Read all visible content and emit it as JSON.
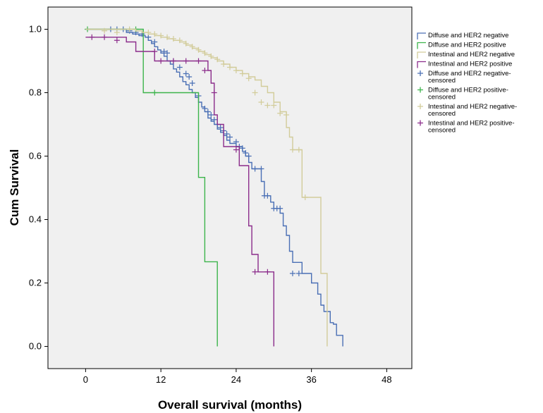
{
  "chart_data": {
    "type": "line",
    "title": "",
    "xlabel": "Overall survival (months)",
    "ylabel": "Cum Survival",
    "xlim": [
      -6,
      52
    ],
    "ylim": [
      -0.07,
      1.07
    ],
    "x_ticks": [
      0,
      12,
      24,
      36,
      48
    ],
    "y_ticks": [
      0.0,
      0.2,
      0.4,
      0.6,
      0.8,
      1.0
    ],
    "grid": false,
    "legend_position": "right",
    "background_color": "#f0f0f0",
    "series": [
      {
        "name": "Diffuse and HER2 negative",
        "color": "#4a6fb5",
        "steps": [
          [
            0,
            1.0
          ],
          [
            6.5,
            0.99
          ],
          [
            7.5,
            0.985
          ],
          [
            8.5,
            0.98
          ],
          [
            9.5,
            0.975
          ],
          [
            10,
            0.965
          ],
          [
            10.5,
            0.955
          ],
          [
            11,
            0.945
          ],
          [
            11.5,
            0.935
          ],
          [
            12,
            0.925
          ],
          [
            12.5,
            0.915
          ],
          [
            13,
            0.9
          ],
          [
            13.5,
            0.89
          ],
          [
            14,
            0.875
          ],
          [
            14.5,
            0.865
          ],
          [
            15,
            0.85
          ],
          [
            15.5,
            0.835
          ],
          [
            16,
            0.825
          ],
          [
            16.5,
            0.81
          ],
          [
            17,
            0.8
          ],
          [
            17.5,
            0.785
          ],
          [
            18,
            0.77
          ],
          [
            18.5,
            0.755
          ],
          [
            19,
            0.74
          ],
          [
            19.5,
            0.72
          ],
          [
            20,
            0.71
          ],
          [
            20.5,
            0.7
          ],
          [
            21,
            0.685
          ],
          [
            21.5,
            0.675
          ],
          [
            22,
            0.665
          ],
          [
            22.5,
            0.65
          ],
          [
            23,
            0.64
          ],
          [
            24,
            0.63
          ],
          [
            25,
            0.615
          ],
          [
            25.5,
            0.6
          ],
          [
            26,
            0.58
          ],
          [
            26.5,
            0.56
          ],
          [
            28,
            0.52
          ],
          [
            28.5,
            0.475
          ],
          [
            29.5,
            0.455
          ],
          [
            30,
            0.435
          ],
          [
            31,
            0.42
          ],
          [
            31.5,
            0.38
          ],
          [
            32,
            0.35
          ],
          [
            32.5,
            0.3
          ],
          [
            33,
            0.265
          ],
          [
            34.5,
            0.23
          ],
          [
            36,
            0.2
          ],
          [
            37,
            0.165
          ],
          [
            37.5,
            0.13
          ],
          [
            38,
            0.11
          ],
          [
            39,
            0.075
          ],
          [
            39.5,
            0.07
          ],
          [
            40,
            0.035
          ],
          [
            41,
            0.0
          ]
        ],
        "censor": [
          [
            4,
            1.0
          ],
          [
            5,
            1.0
          ],
          [
            6,
            1.0
          ],
          [
            7,
            0.995
          ],
          [
            8,
            0.99
          ],
          [
            9,
            0.985
          ],
          [
            10,
            0.975
          ],
          [
            11,
            0.96
          ],
          [
            12.5,
            0.93
          ],
          [
            13,
            0.925
          ],
          [
            14,
            0.9
          ],
          [
            15,
            0.88
          ],
          [
            16,
            0.86
          ],
          [
            16.5,
            0.85
          ],
          [
            17,
            0.83
          ],
          [
            18,
            0.79
          ],
          [
            19,
            0.75
          ],
          [
            19.5,
            0.74
          ],
          [
            20,
            0.73
          ],
          [
            20.5,
            0.715
          ],
          [
            21,
            0.7
          ],
          [
            21.5,
            0.69
          ],
          [
            22,
            0.68
          ],
          [
            22.5,
            0.67
          ],
          [
            23,
            0.66
          ],
          [
            24,
            0.645
          ],
          [
            24.5,
            0.63
          ],
          [
            25,
            0.625
          ],
          [
            25.5,
            0.61
          ],
          [
            26,
            0.6
          ],
          [
            27,
            0.56
          ],
          [
            28,
            0.56
          ],
          [
            28.5,
            0.475
          ],
          [
            29,
            0.475
          ],
          [
            30,
            0.435
          ],
          [
            30.5,
            0.435
          ],
          [
            31,
            0.435
          ],
          [
            33,
            0.23
          ],
          [
            34,
            0.23
          ]
        ]
      },
      {
        "name": "Diffuse and HER2 positive",
        "color": "#3cb44b",
        "steps": [
          [
            0,
            1.0
          ],
          [
            9.2,
            0.8
          ],
          [
            18,
            0.533
          ],
          [
            19,
            0.267
          ],
          [
            21,
            0.0
          ]
        ],
        "censor": [
          [
            0.3,
            1.0
          ],
          [
            8,
            1.0
          ],
          [
            11,
            0.8
          ]
        ]
      },
      {
        "name": "Intestinal and HER2 negative",
        "color": "#d2cc9a",
        "steps": [
          [
            0,
            1.0
          ],
          [
            8,
            0.995
          ],
          [
            9,
            0.99
          ],
          [
            10,
            0.985
          ],
          [
            11,
            0.98
          ],
          [
            12,
            0.975
          ],
          [
            13,
            0.97
          ],
          [
            14,
            0.965
          ],
          [
            15,
            0.96
          ],
          [
            16,
            0.95
          ],
          [
            17,
            0.94
          ],
          [
            18,
            0.93
          ],
          [
            19,
            0.92
          ],
          [
            20,
            0.91
          ],
          [
            21,
            0.9
          ],
          [
            22,
            0.89
          ],
          [
            23,
            0.88
          ],
          [
            24,
            0.87
          ],
          [
            25,
            0.86
          ],
          [
            26,
            0.85
          ],
          [
            27,
            0.84
          ],
          [
            28,
            0.82
          ],
          [
            29,
            0.8
          ],
          [
            30,
            0.77
          ],
          [
            31,
            0.74
          ],
          [
            32,
            0.69
          ],
          [
            32.5,
            0.66
          ],
          [
            33,
            0.62
          ],
          [
            34.5,
            0.47
          ],
          [
            37.5,
            0.23
          ],
          [
            38.5,
            0.0
          ]
        ],
        "censor": [
          [
            3,
            0.995
          ],
          [
            5,
            0.99
          ],
          [
            7,
            1.0
          ],
          [
            10,
            0.99
          ],
          [
            11,
            0.985
          ],
          [
            12,
            0.98
          ],
          [
            13,
            0.975
          ],
          [
            14,
            0.97
          ],
          [
            15,
            0.965
          ],
          [
            16,
            0.955
          ],
          [
            17,
            0.945
          ],
          [
            18,
            0.935
          ],
          [
            19,
            0.925
          ],
          [
            20,
            0.915
          ],
          [
            21,
            0.905
          ],
          [
            22,
            0.89
          ],
          [
            23,
            0.88
          ],
          [
            24,
            0.87
          ],
          [
            25,
            0.86
          ],
          [
            26,
            0.845
          ],
          [
            27,
            0.8
          ],
          [
            28,
            0.77
          ],
          [
            29,
            0.76
          ],
          [
            30,
            0.76
          ],
          [
            31,
            0.735
          ],
          [
            32,
            0.73
          ],
          [
            33,
            0.62
          ],
          [
            34,
            0.62
          ],
          [
            35,
            0.47
          ]
        ]
      },
      {
        "name": "Intestinal and HER2 positive",
        "color": "#8b2c8b",
        "steps": [
          [
            0,
            0.975
          ],
          [
            6.5,
            0.96
          ],
          [
            8,
            0.93
          ],
          [
            10,
            0.93
          ],
          [
            11,
            0.9
          ],
          [
            18,
            0.9
          ],
          [
            19.5,
            0.87
          ],
          [
            20,
            0.83
          ],
          [
            20.5,
            0.73
          ],
          [
            21,
            0.7
          ],
          [
            22,
            0.63
          ],
          [
            24,
            0.63
          ],
          [
            24.5,
            0.57
          ],
          [
            26,
            0.38
          ],
          [
            26.5,
            0.29
          ],
          [
            27.5,
            0.235
          ],
          [
            30,
            0.0
          ]
        ],
        "censor": [
          [
            1,
            0.975
          ],
          [
            3,
            0.975
          ],
          [
            5,
            0.965
          ],
          [
            11,
            0.93
          ],
          [
            12,
            0.9
          ],
          [
            14,
            0.9
          ],
          [
            16,
            0.9
          ],
          [
            18,
            0.9
          ],
          [
            19,
            0.87
          ],
          [
            20.5,
            0.8
          ],
          [
            24,
            0.62
          ],
          [
            27,
            0.235
          ],
          [
            29,
            0.235
          ]
        ]
      }
    ],
    "legend_entries": [
      {
        "label": "Diffuse and HER2 negative",
        "color": "#4a6fb5",
        "kind": "step"
      },
      {
        "label": "Diffuse and HER2 positive",
        "color": "#3cb44b",
        "kind": "step"
      },
      {
        "label": "Intestinal and HER2 negative",
        "color": "#d2cc9a",
        "kind": "step"
      },
      {
        "label": "Intestinal and HER2 positive",
        "color": "#8b2c8b",
        "kind": "step"
      },
      {
        "label": "Diffuse and HER2 negative-censored",
        "color": "#4a6fb5",
        "kind": "cross"
      },
      {
        "label": "Diffuse and HER2 positive-censored",
        "color": "#3cb44b",
        "kind": "cross"
      },
      {
        "label": "Intestinal and HER2 negative-censored",
        "color": "#d2cc9a",
        "kind": "cross"
      },
      {
        "label": "Intestinal and HER2 positive-censored",
        "color": "#8b2c8b",
        "kind": "cross"
      }
    ]
  }
}
